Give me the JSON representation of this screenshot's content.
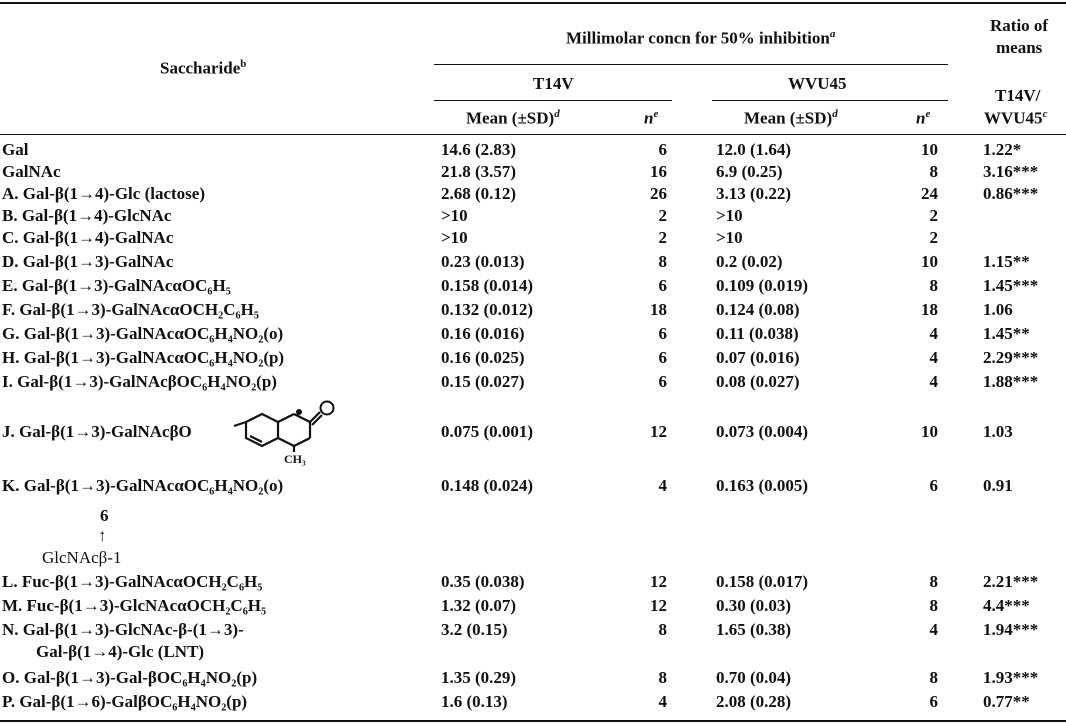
{
  "headers": {
    "saccharide": "Saccharide",
    "saccharide_note": "b",
    "group": "Millimolar concn for 50% inhibition",
    "group_note": "a",
    "ratio_line1": "Ratio of",
    "ratio_line2": "means",
    "t14v": "T14V",
    "wvu45": "WVU45",
    "mean_sd": "Mean (±SD)",
    "mean_note": "d",
    "n": "n",
    "n_note": "e",
    "ratio_sub1": "T14V/",
    "ratio_sub2": "WVU45",
    "ratio_note": "c"
  },
  "rows": [
    {
      "name": "Gal",
      "m1": "14.6 (2.83)",
      "n1": "6",
      "m2": "12.0 (1.64)",
      "n2": "10",
      "ratio": "1.22*"
    },
    {
      "name": "GalNAc",
      "m1": "21.8 (3.57)",
      "n1": "16",
      "m2": "6.9 (0.25)",
      "n2": "8",
      "ratio": "3.16***"
    },
    {
      "name": "A. Gal-β(1→4)-Glc (lactose)",
      "m1": "2.68 (0.12)",
      "n1": "26",
      "m2": "3.13 (0.22)",
      "n2": "24",
      "ratio": "0.86***"
    },
    {
      "name": "B. Gal-β(1→4)-GlcNAc",
      "m1": ">10",
      "n1": "2",
      "m2": ">10",
      "n2": "2",
      "ratio": ""
    },
    {
      "name": "C. Gal-β(1→4)-GalNAc",
      "m1": ">10",
      "n1": "2",
      "m2": ">10",
      "n2": "2",
      "ratio": ""
    },
    {
      "name": "D. Gal-β(1→3)-GalNAc",
      "m1": "0.23 (0.013)",
      "n1": "8",
      "m2": "0.2 (0.02)",
      "n2": "10",
      "ratio": "1.15**"
    },
    {
      "name": "E. Gal-β(1→3)-GalNAcαOC₆H₅",
      "m1": "0.158 (0.014)",
      "n1": "6",
      "m2": "0.109 (0.019)",
      "n2": "8",
      "ratio": "1.45***"
    },
    {
      "name": "F. Gal-β(1→3)-GalNAcαOCH₂C₆H₅",
      "m1": "0.132 (0.012)",
      "n1": "18",
      "m2": "0.124 (0.08)",
      "n2": "18",
      "ratio": "1.06"
    },
    {
      "name": "G. Gal-β(1→3)-GalNAcαOC₆H₄NO₂(o)",
      "m1": "0.16 (0.016)",
      "n1": "6",
      "m2": "0.11 (0.038)",
      "n2": "4",
      "ratio": "1.45**"
    },
    {
      "name": "H. Gal-β(1→3)-GalNAcαOC₆H₄NO₂(p)",
      "m1": "0.16 (0.025)",
      "n1": "6",
      "m2": "0.07 (0.016)",
      "n2": "4",
      "ratio": "2.29***"
    },
    {
      "name": "I. Gal-β(1→3)-GalNAcβOC₆H₄NO₂(p)",
      "m1": "0.15 (0.027)",
      "n1": "6",
      "m2": "0.08 (0.027)",
      "n2": "4",
      "ratio": "1.88***"
    },
    {
      "name": "J. Gal-β(1→3)-GalNAcβO",
      "m1": "0.075 (0.001)",
      "n1": "12",
      "m2": "0.073 (0.004)",
      "n2": "10",
      "ratio": "1.03",
      "substituent": "CH₃"
    },
    {
      "name": "K. Gal-β(1→3)-GalNAcαOC₆H₄NO₂(o)",
      "m1": "0.148 (0.024)",
      "n1": "4",
      "m2": "0.163 (0.005)",
      "n2": "6",
      "ratio": "0.91",
      "branch_pos": "6",
      "branch_arrow": "↑",
      "branch": "GlcNAcβ-1"
    },
    {
      "name": "L. Fuc-β(1→3)-GalNAcαOCH₂C₆H₅",
      "m1": "0.35 (0.038)",
      "n1": "12",
      "m2": "0.158 (0.017)",
      "n2": "8",
      "ratio": "2.21***"
    },
    {
      "name": "M. Fuc-β(1→3)-GlcNAcαOCH₂C₆H₅",
      "m1": "1.32 (0.07)",
      "n1": "12",
      "m2": "0.30 (0.03)",
      "n2": "8",
      "ratio": "4.4***"
    },
    {
      "name": "N. Gal-β(1→3)-GlcNAc-β-(1→3)-",
      "name2": "Gal-β(1→4)-Glc (LNT)",
      "m1": "3.2 (0.15)",
      "n1": "8",
      "m2": "1.65 (0.38)",
      "n2": "4",
      "ratio": "1.94***"
    },
    {
      "name": "O. Gal-β(1→3)-Gal-βOC₆H₄NO₂(p)",
      "m1": "1.35 (0.29)",
      "n1": "8",
      "m2": "0.70 (0.04)",
      "n2": "8",
      "ratio": "1.93***"
    },
    {
      "name": "P. Gal-β(1→6)-GalβOC₆H₄NO₂(p)",
      "m1": "1.6 (0.13)",
      "n1": "4",
      "m2": "2.08 (0.28)",
      "n2": "6",
      "ratio": "0.77**"
    }
  ]
}
